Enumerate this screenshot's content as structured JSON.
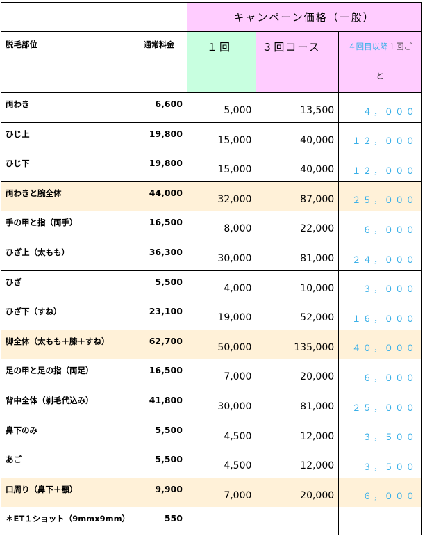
{
  "header": {
    "campaign_title": "キャンペーン価格（一般）",
    "part_label": "脱毛部位",
    "regular_label": "通常料金",
    "once_label": "１回",
    "three_label": "３回コース",
    "four_label_a": "４回目以降",
    "four_label_b": "１回ご",
    "four_label_c": "と"
  },
  "rows": [
    {
      "part": "両わき",
      "regular": "6,600",
      "once": "5,000",
      "three": "13,500",
      "four": "４，０００",
      "highlight": false
    },
    {
      "part": "ひじ上",
      "regular": "19,800",
      "once": "15,000",
      "three": "40,000",
      "four": "１２，０００",
      "highlight": false
    },
    {
      "part": "ひじ下",
      "regular": "19,800",
      "once": "15,000",
      "three": "40,000",
      "four": "１２，０００",
      "highlight": false
    },
    {
      "part": "両わきと腕全体",
      "regular": "44,000",
      "once": "32,000",
      "three": "87,000",
      "four": "２５，０００",
      "highlight": true
    },
    {
      "part": "手の甲と指（両手）",
      "regular": "16,500",
      "once": "8,000",
      "three": "22,000",
      "four": "６，０００",
      "highlight": false
    },
    {
      "part": "ひざ上（太もも）",
      "regular": "36,300",
      "once": "30,000",
      "three": "81,000",
      "four": "２４，０００",
      "highlight": false
    },
    {
      "part": "ひざ",
      "regular": "5,500",
      "once": "4,000",
      "three": "10,000",
      "four": "３，０００",
      "highlight": false
    },
    {
      "part": "ひざ下（すね）",
      "regular": "23,100",
      "once": "19,000",
      "three": "52,000",
      "four": "１６，０００",
      "highlight": false
    },
    {
      "part": "脚全体（太もも＋膝＋すね）",
      "regular": "62,700",
      "once": "50,000",
      "three": "135,000",
      "four": "４０，０００",
      "highlight": true
    },
    {
      "part": "足の甲と足の指（両足）",
      "regular": "16,500",
      "once": "7,000",
      "three": "20,000",
      "four": "６，０００",
      "highlight": false
    },
    {
      "part": "背中全体（剃毛代込み）",
      "regular": "41,800",
      "once": "30,000",
      "three": "81,000",
      "four": "２５，０００",
      "highlight": false
    },
    {
      "part": "鼻下のみ",
      "regular": "5,500",
      "once": "4,500",
      "three": "12,000",
      "four": "３，５００",
      "highlight": false
    },
    {
      "part": "あご",
      "regular": "5,500",
      "once": "4,500",
      "three": "12,000",
      "four": "３，５００",
      "highlight": false
    },
    {
      "part": "口周り（鼻下＋顎）",
      "regular": "9,900",
      "once": "7,000",
      "three": "20,000",
      "four": "６，０００",
      "highlight": true
    },
    {
      "part": "＊ET１ショット（9mmx9mm）",
      "regular": "550",
      "once": "",
      "three": "",
      "four": "",
      "highlight": false
    }
  ]
}
